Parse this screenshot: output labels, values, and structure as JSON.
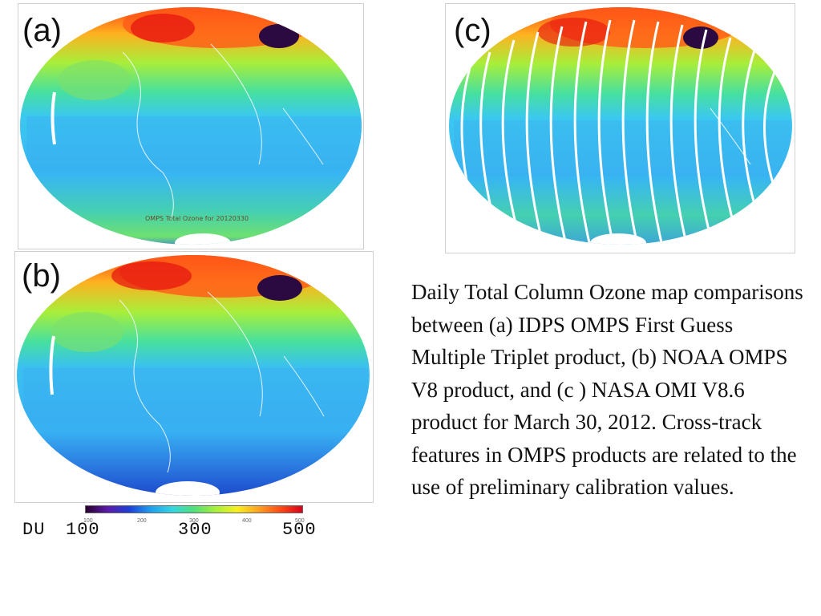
{
  "panels": [
    {
      "id": "a",
      "label": "(a)",
      "inset_text": "OMPS Total Ozone for 20120330"
    },
    {
      "id": "b",
      "label": "(b)"
    },
    {
      "id": "c",
      "label": "(c)"
    }
  ],
  "colorbar": {
    "unit_label": "DU",
    "major_ticks": [
      "100",
      "300",
      "500"
    ],
    "minor_ticks": [
      "100",
      "200",
      "300",
      "400",
      "500"
    ],
    "colors": [
      "#2a0030",
      "#5b1aa8",
      "#1e3fd8",
      "#1fa0f0",
      "#35d6e0",
      "#4fe07a",
      "#a8f03a",
      "#f7f020",
      "#ffa020",
      "#ff4a14",
      "#d9001a"
    ]
  },
  "caption": "Daily Total Column Ozone map comparisons between (a) IDPS OMPS First Guess Multiple Triplet product, (b) NOAA OMPS V8 product, and (c ) NASA OMI V8.6 product for March 30, 2012. Cross-track features in OMPS products are related to the use of preliminary calibration values."
}
